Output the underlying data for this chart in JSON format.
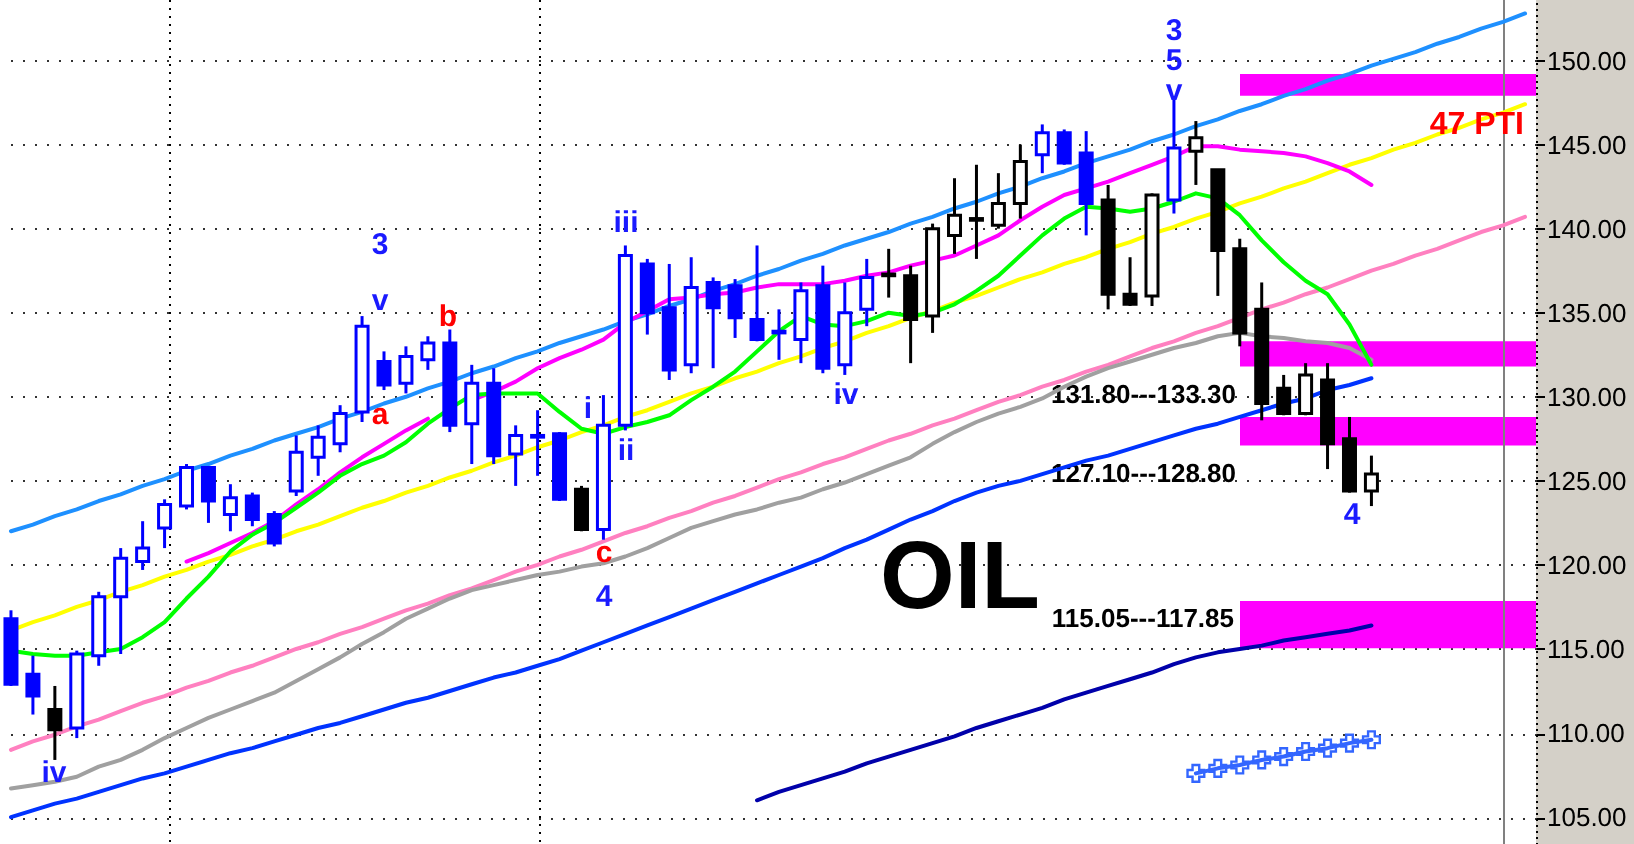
{
  "chart_data": {
    "type": "candlestick",
    "categories": [
      null,
      null,
      null,
      null,
      null,
      null,
      null,
      null,
      null,
      null,
      null,
      null,
      null,
      null,
      null,
      null,
      null,
      null,
      null,
      null,
      null,
      null,
      null,
      null,
      null,
      null,
      null,
      null,
      null,
      null,
      null,
      null,
      null,
      null,
      null,
      null,
      null,
      null,
      null,
      null,
      null,
      null,
      null,
      null,
      null,
      null,
      null,
      null,
      null,
      null,
      null,
      null,
      null,
      null,
      null,
      null,
      null,
      null,
      null,
      null,
      null,
      null,
      null,
      null,
      null,
      null,
      null,
      null,
      null,
      null
    ],
    "ohlc": [
      [
        116.8,
        117.3,
        112.8,
        112.9
      ],
      [
        113.5,
        114.6,
        111.1,
        112.2
      ],
      [
        111.4,
        112.8,
        108.4,
        110.2
      ],
      [
        110.3,
        114.9,
        109.7,
        114.7
      ],
      [
        114.6,
        118.4,
        114.0,
        118.1
      ],
      [
        118.1,
        121.0,
        114.7,
        120.4
      ],
      [
        120.2,
        122.6,
        119.7,
        121.0
      ],
      [
        122.2,
        123.9,
        121.0,
        123.6
      ],
      [
        123.5,
        126.0,
        123.3,
        125.8
      ],
      [
        125.8,
        125.8,
        122.5,
        123.8
      ],
      [
        123.0,
        124.8,
        122.0,
        124.0
      ],
      [
        124.1,
        124.3,
        122.3,
        122.7
      ],
      [
        123.0,
        123.2,
        121.1,
        121.3
      ],
      [
        124.4,
        127.7,
        124.1,
        126.7
      ],
      [
        126.4,
        128.3,
        125.3,
        127.6
      ],
      [
        127.2,
        129.5,
        126.7,
        129.0
      ],
      [
        129.1,
        134.8,
        128.5,
        134.2
      ],
      [
        132.1,
        132.7,
        130.4,
        130.7
      ],
      [
        130.8,
        133.0,
        130.2,
        132.4
      ],
      [
        132.2,
        133.6,
        131.6,
        133.2
      ],
      [
        133.2,
        134.0,
        127.9,
        128.3
      ],
      [
        128.4,
        131.9,
        126.0,
        130.8
      ],
      [
        130.8,
        131.7,
        126.0,
        126.5
      ],
      [
        126.6,
        128.3,
        124.7,
        127.7
      ],
      [
        127.6,
        129.2,
        125.3,
        127.7
      ],
      [
        127.8,
        127.9,
        123.8,
        123.9
      ],
      [
        124.5,
        124.7,
        122.0,
        122.1
      ],
      [
        122.1,
        130.1,
        121.5,
        128.3
      ],
      [
        128.3,
        139.0,
        128.0,
        138.4
      ],
      [
        137.9,
        138.2,
        133.7,
        135.0
      ],
      [
        135.3,
        137.9,
        131.0,
        131.6
      ],
      [
        131.9,
        138.3,
        131.4,
        136.5
      ],
      [
        136.8,
        137.1,
        131.7,
        135.3
      ],
      [
        136.6,
        137.0,
        133.5,
        134.7
      ],
      [
        134.6,
        139.0,
        133.3,
        133.4
      ],
      [
        133.8,
        135.2,
        132.2,
        133.9
      ],
      [
        133.4,
        136.8,
        132.0,
        136.3
      ],
      [
        136.6,
        137.8,
        131.4,
        131.7
      ],
      [
        131.9,
        136.8,
        131.3,
        135.0
      ],
      [
        135.2,
        138.2,
        134.2,
        137.1
      ],
      [
        137.2,
        138.8,
        135.9,
        137.3
      ],
      [
        137.2,
        137.8,
        132.0,
        134.6
      ],
      [
        134.8,
        140.3,
        133.8,
        140.0
      ],
      [
        139.6,
        143.0,
        138.5,
        140.8
      ],
      [
        140.5,
        143.8,
        138.2,
        140.6
      ],
      [
        140.2,
        143.3,
        140.0,
        141.5
      ],
      [
        141.5,
        145.0,
        140.6,
        144.0
      ],
      [
        144.4,
        146.2,
        143.3,
        145.7
      ],
      [
        145.7,
        145.9,
        143.8,
        143.9
      ],
      [
        144.5,
        145.8,
        139.6,
        141.5
      ],
      [
        141.7,
        142.6,
        135.2,
        136.1
      ],
      [
        136.1,
        138.3,
        135.4,
        135.5
      ],
      [
        136.0,
        142.1,
        135.4,
        142.0
      ],
      [
        141.7,
        147.9,
        140.9,
        144.8
      ],
      [
        144.6,
        146.4,
        142.6,
        145.4
      ],
      [
        143.5,
        143.5,
        136.0,
        138.7
      ],
      [
        138.8,
        139.4,
        133.0,
        133.8
      ],
      [
        135.2,
        136.8,
        128.6,
        129.6
      ],
      [
        130.5,
        131.3,
        128.9,
        129.0
      ],
      [
        129.0,
        132.0,
        128.9,
        131.3
      ],
      [
        131.0,
        132.0,
        125.7,
        127.2
      ],
      [
        127.5,
        128.8,
        124.3,
        124.4
      ],
      [
        124.4,
        126.5,
        123.5,
        125.4
      ],
      null,
      null,
      null,
      null,
      null,
      null,
      null
    ],
    "colors": [
      "#0000ff",
      "#0000ff",
      "#000000",
      "#0000ff",
      "#0000ff",
      "#0000ff",
      "#0000ff",
      "#0000ff",
      "#0000ff",
      "#0000ff",
      "#0000ff",
      "#0000ff",
      "#0000ff",
      "#0000ff",
      "#0000ff",
      "#0000ff",
      "#0000ff",
      "#0000ff",
      "#0000ff",
      "#0000ff",
      "#0000ff",
      "#0000ff",
      "#0000ff",
      "#0000ff",
      "#0000ff",
      "#0000ff",
      "#000000",
      "#0000ff",
      "#0000ff",
      "#0000ff",
      "#0000ff",
      "#0000ff",
      "#0000ff",
      "#0000ff",
      "#0000ff",
      "#0000ff",
      "#0000ff",
      "#0000ff",
      "#0000ff",
      "#0000ff",
      "#000000",
      "#000000",
      "#000000",
      "#000000",
      "#000000",
      "#000000",
      "#000000",
      "#0000ff",
      "#0000ff",
      "#0000ff",
      "#000000",
      "#000000",
      "#000000",
      "#0000ff",
      "#000000",
      "#000000",
      "#000000",
      "#000000",
      "#000000",
      "#000000",
      "#000000",
      "#000000",
      "#000000",
      null,
      null,
      null,
      null,
      null,
      null,
      null
    ],
    "series": [
      {
        "type": "line",
        "color": "#1e90ff",
        "values": [
          122.0,
          122.4,
          122.9,
          123.3,
          123.8,
          124.2,
          124.7,
          125.1,
          125.6,
          126.0,
          126.5,
          126.9,
          127.4,
          127.8,
          128.2,
          128.7,
          129.1,
          129.6,
          130.0,
          130.5,
          130.9,
          131.4,
          131.8,
          132.3,
          132.7,
          133.2,
          133.6,
          134.0,
          134.5,
          134.9,
          135.4,
          135.8,
          136.3,
          136.7,
          137.2,
          137.6,
          138.1,
          138.5,
          139.0,
          139.4,
          139.8,
          140.3,
          140.7,
          141.2,
          141.6,
          142.1,
          142.5,
          143.0,
          143.4,
          143.9,
          144.3,
          144.7,
          145.2,
          145.6,
          146.1,
          146.5,
          147.0,
          147.4,
          147.9,
          148.3,
          148.8,
          149.2,
          149.7,
          150.1,
          150.5,
          151.0,
          151.4,
          151.9,
          152.3,
          152.8
        ]
      },
      {
        "type": "line",
        "color": "#0033ff",
        "values": [
          105.0,
          105.4,
          105.8,
          106.1,
          106.5,
          106.9,
          107.3,
          107.6,
          108.0,
          108.4,
          108.8,
          109.1,
          109.5,
          109.9,
          110.3,
          110.6,
          111.0,
          111.4,
          111.8,
          112.1,
          112.5,
          112.9,
          113.3,
          113.6,
          114.0,
          114.4,
          114.9,
          115.4,
          115.9,
          116.4,
          116.9,
          117.4,
          117.9,
          118.4,
          118.9,
          119.4,
          119.9,
          120.4,
          121.0,
          121.5,
          122.1,
          122.7,
          123.2,
          123.8,
          124.3,
          124.7,
          125.0,
          125.4,
          125.8,
          126.2,
          126.5,
          126.9,
          127.3,
          127.7,
          128.1,
          128.4,
          128.8,
          129.2,
          129.6,
          129.9,
          130.4,
          130.7,
          131.1,
          null,
          null,
          null,
          null,
          null,
          null,
          null
        ]
      },
      {
        "type": "line",
        "color": "#0000aa",
        "values": [
          null,
          null,
          null,
          null,
          null,
          null,
          null,
          null,
          null,
          null,
          null,
          null,
          null,
          null,
          null,
          null,
          null,
          null,
          null,
          null,
          null,
          null,
          null,
          null,
          null,
          null,
          null,
          null,
          null,
          null,
          null,
          null,
          null,
          null,
          106.0,
          106.5,
          106.9,
          107.3,
          107.7,
          108.2,
          108.6,
          109.0,
          109.4,
          109.8,
          110.3,
          110.7,
          111.1,
          111.5,
          112.0,
          112.4,
          112.8,
          113.2,
          113.6,
          114.1,
          114.5,
          114.8,
          115.0,
          115.2,
          115.5,
          115.7,
          115.9,
          116.1,
          116.4,
          null,
          null,
          null,
          null,
          null,
          null,
          null
        ]
      },
      {
        "type": "line",
        "color": "#ffff00",
        "values": [
          116.1,
          116.6,
          117.0,
          117.5,
          117.9,
          118.4,
          118.8,
          119.3,
          119.7,
          120.2,
          120.6,
          121.1,
          121.5,
          122.0,
          122.4,
          122.9,
          123.4,
          123.8,
          124.3,
          124.7,
          125.2,
          125.6,
          126.1,
          126.5,
          127.0,
          127.4,
          127.9,
          128.3,
          128.8,
          129.2,
          129.7,
          130.2,
          130.6,
          131.1,
          131.5,
          132.0,
          132.4,
          132.9,
          133.3,
          133.8,
          134.2,
          134.7,
          135.1,
          135.6,
          136.0,
          136.5,
          137.0,
          137.4,
          137.9,
          138.3,
          138.8,
          139.2,
          139.7,
          140.1,
          140.6,
          141.0,
          141.5,
          141.9,
          142.4,
          142.8,
          143.3,
          143.8,
          144.2,
          144.7,
          145.1,
          145.6,
          146.0,
          146.5,
          146.9,
          147.4
        ]
      },
      {
        "type": "line",
        "color": "#ff80c0",
        "values": [
          109.0,
          109.5,
          109.9,
          110.4,
          110.8,
          111.3,
          111.8,
          112.2,
          112.7,
          113.1,
          113.6,
          114.0,
          114.5,
          115.0,
          115.4,
          115.9,
          116.3,
          116.8,
          117.3,
          117.7,
          118.2,
          118.6,
          119.1,
          119.6,
          120.0,
          120.5,
          120.9,
          121.4,
          121.9,
          122.3,
          122.8,
          123.2,
          123.7,
          124.1,
          124.6,
          125.1,
          125.5,
          126.0,
          126.4,
          126.9,
          127.4,
          127.8,
          128.3,
          128.7,
          129.2,
          129.7,
          130.1,
          130.6,
          131.0,
          131.5,
          131.9,
          132.4,
          132.9,
          133.3,
          133.8,
          134.2,
          134.7,
          135.2,
          135.6,
          136.1,
          136.5,
          137.0,
          137.5,
          137.9,
          138.4,
          138.8,
          139.3,
          139.8,
          140.2,
          140.7
        ]
      },
      {
        "type": "line",
        "color": "#a0a0a0",
        "values": [
          106.7,
          106.9,
          107.1,
          107.4,
          108.0,
          108.4,
          109.0,
          109.7,
          110.3,
          110.9,
          111.4,
          111.9,
          112.4,
          113.1,
          113.8,
          114.5,
          115.3,
          116.0,
          116.8,
          117.4,
          118.0,
          118.5,
          118.8,
          119.1,
          119.4,
          119.6,
          119.9,
          120.1,
          120.5,
          121.0,
          121.6,
          122.2,
          122.6,
          123.0,
          123.3,
          123.7,
          124.0,
          124.5,
          124.9,
          125.4,
          125.9,
          126.4,
          127.2,
          127.9,
          128.5,
          129.0,
          129.4,
          129.9,
          130.6,
          131.2,
          131.7,
          132.1,
          132.5,
          132.9,
          133.2,
          133.6,
          133.8,
          133.6,
          133.5,
          133.3,
          133.2,
          132.9,
          132.2,
          null,
          null,
          null,
          null,
          null,
          null,
          null
        ]
      },
      {
        "type": "line",
        "color": "#ff00ff",
        "values": [
          null,
          null,
          null,
          null,
          null,
          null,
          null,
          null,
          120.2,
          120.7,
          121.3,
          121.9,
          122.6,
          123.6,
          124.5,
          125.5,
          126.4,
          127.2,
          128.0,
          128.7,
          null,
          129.8,
          130.3,
          130.9,
          131.7,
          132.3,
          132.8,
          133.4,
          134.4,
          135.1,
          135.8,
          135.9,
          136.1,
          136.2,
          136.5,
          136.7,
          136.7,
          136.7,
          136.9,
          137.2,
          137.4,
          137.8,
          138.1,
          138.4,
          139.0,
          139.6,
          140.5,
          141.3,
          142.0,
          142.4,
          142.8,
          143.3,
          143.8,
          144.3,
          144.9,
          144.9,
          144.7,
          144.6,
          144.5,
          144.3,
          143.9,
          143.4,
          142.6,
          null,
          null,
          null,
          null,
          null,
          null,
          null
        ]
      },
      {
        "type": "line",
        "color": "#00ff00",
        "values": [
          114.9,
          114.7,
          114.6,
          114.6,
          114.8,
          115.0,
          115.7,
          116.6,
          118.0,
          119.3,
          120.8,
          121.8,
          122.5,
          123.4,
          124.3,
          125.3,
          126.0,
          126.5,
          127.3,
          128.4,
          129.3,
          130.1,
          130.2,
          130.2,
          130.2,
          129.1,
          128.1,
          127.8,
          128.2,
          128.5,
          128.9,
          129.8,
          130.6,
          131.5,
          132.7,
          133.9,
          134.8,
          134.3,
          134.2,
          134.5,
          135.0,
          134.8,
          135.0,
          135.5,
          136.3,
          137.2,
          138.4,
          139.6,
          140.6,
          141.3,
          141.2,
          141.0,
          141.2,
          141.6,
          142.1,
          141.8,
          140.8,
          139.3,
          138.0,
          136.9,
          136.1,
          134.3,
          131.9,
          null,
          null,
          null,
          null,
          null,
          null,
          null
        ]
      },
      {
        "type": "line",
        "color": "#3366ff",
        "marker": "cross",
        "values": [
          null,
          null,
          null,
          null,
          null,
          null,
          null,
          null,
          null,
          null,
          null,
          null,
          null,
          null,
          null,
          null,
          null,
          null,
          null,
          null,
          null,
          null,
          null,
          null,
          null,
          null,
          null,
          null,
          null,
          null,
          null,
          null,
          null,
          null,
          null,
          null,
          null,
          null,
          null,
          null,
          null,
          null,
          null,
          null,
          null,
          null,
          null,
          null,
          null,
          null,
          null,
          null,
          null,
          null,
          107.6,
          107.9,
          108.1,
          108.4,
          108.6,
          108.9,
          109.1,
          109.4,
          109.6,
          null,
          null,
          null,
          null,
          null,
          null,
          null
        ]
      }
    ],
    "ylim": [
      103.4,
      153.6
    ],
    "yticks": [
      {
        "value": 105,
        "label": "105.00"
      },
      {
        "value": 110,
        "label": "110.00"
      },
      {
        "value": 115,
        "label": "115.00"
      },
      {
        "value": 120,
        "label": "120.00"
      },
      {
        "value": 125,
        "label": "125.00"
      },
      {
        "value": 130,
        "label": "130.00"
      },
      {
        "value": 135,
        "label": "135.00"
      },
      {
        "value": 140,
        "label": "140.00"
      },
      {
        "value": 145,
        "label": "145.00"
      },
      {
        "value": 150,
        "label": "150.00"
      }
    ],
    "tick_labels": "y",
    "grid": "y",
    "bands": [
      {
        "axis": "y",
        "from": 147.9,
        "to": 149.2,
        "color": "#ff00ff"
      },
      {
        "axis": "y",
        "from": 131.8,
        "to": 133.3,
        "label": "131.80---133.30",
        "color": "#ff00ff"
      },
      {
        "axis": "y",
        "from": 127.1,
        "to": 128.8,
        "label": "127.10---128.80",
        "color": "#ff00ff"
      },
      {
        "axis": "y",
        "from": 115.05,
        "to": 117.85,
        "label": "115.05---117.85",
        "color": "#ff00ff"
      }
    ],
    "annotations": [
      "iv",
      "3",
      "v",
      "a",
      "b",
      "iii",
      "i",
      "ii",
      "c",
      "4",
      "iv",
      "3",
      "5",
      "v",
      "4",
      "OIL",
      "47 PTI"
    ]
  }
}
